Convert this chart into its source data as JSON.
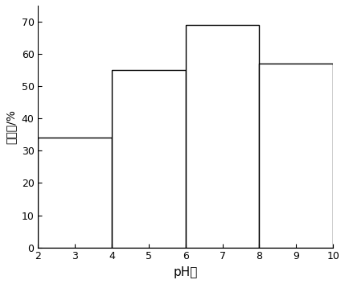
{
  "bars": [
    {
      "x_left": 2,
      "x_right": 4,
      "height": 34
    },
    {
      "x_left": 4,
      "x_right": 6,
      "height": 55
    },
    {
      "x_left": 6,
      "x_right": 8,
      "height": 69
    },
    {
      "x_left": 8,
      "x_right": 10,
      "height": 57
    }
  ],
  "xlim": [
    2,
    10
  ],
  "ylim": [
    0,
    75
  ],
  "xticks": [
    2,
    3,
    4,
    5,
    6,
    7,
    8,
    9,
    10
  ],
  "yticks": [
    0,
    10,
    20,
    30,
    40,
    50,
    60,
    70
  ],
  "xlabel": "pH値",
  "ylabel": "去除率/%",
  "bar_facecolor": "#ffffff",
  "bar_edgecolor": "#000000",
  "background_color": "#ffffff",
  "axes_facecolor": "#ffffff",
  "figure_facecolor": "#ffffff",
  "bar_linewidth": 1.0,
  "xlabel_fontsize": 11,
  "ylabel_fontsize": 10,
  "tick_fontsize": 9
}
